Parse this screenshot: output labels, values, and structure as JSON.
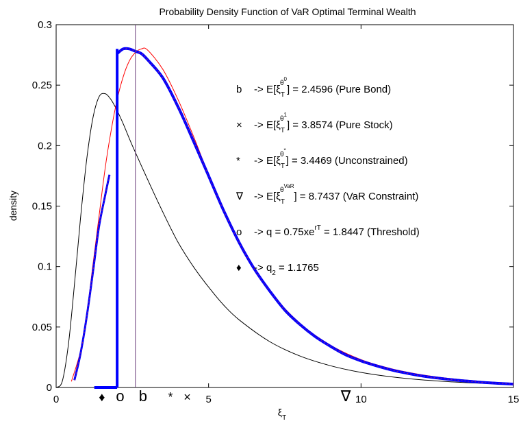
{
  "chart_data": {
    "type": "line",
    "title": "Probability Density Function of VaR Optimal Terminal Wealth",
    "xlabel_main": "ξ",
    "xlabel_sub": "T",
    "ylabel": "density",
    "xlim": [
      0,
      15
    ],
    "ylim": [
      0,
      0.3
    ],
    "xticks": [
      0,
      5,
      10,
      15
    ],
    "yticks": [
      0,
      0.05,
      0.1,
      0.15,
      0.2,
      0.25,
      0.3
    ],
    "xtick_labels": [
      "0",
      "5",
      "10",
      "15"
    ],
    "ytick_labels": [
      "0",
      "0.05",
      "0.1",
      "0.15",
      "0.2",
      "0.25",
      "0.3"
    ],
    "series": [
      {
        "key": "bond",
        "color": "#000000",
        "width": 1,
        "mode": 2.6,
        "x": [
          0,
          0.2,
          0.4,
          0.6,
          0.8,
          1.0,
          1.2,
          1.4,
          1.6,
          1.8,
          2.0,
          2.2,
          2.5,
          3.0,
          3.5,
          4.0,
          4.5,
          5.0,
          5.5,
          6.0,
          7.0,
          8.0,
          9.0,
          10.0,
          11.0,
          12.0,
          13.0,
          14.0,
          15.0
        ],
        "y": [
          0,
          0.005,
          0.035,
          0.085,
          0.14,
          0.188,
          0.222,
          0.24,
          0.243,
          0.238,
          0.229,
          0.218,
          0.2,
          0.172,
          0.145,
          0.12,
          0.1,
          0.083,
          0.068,
          0.056,
          0.038,
          0.026,
          0.018,
          0.0125,
          0.0088,
          0.0063,
          0.0046,
          0.0034,
          0.0025
        ]
      },
      {
        "key": "unconstrained",
        "color": "#ff0000",
        "width": 1,
        "x": [
          0.5,
          0.8,
          1.0,
          1.2,
          1.4,
          1.6,
          1.8,
          2.0,
          2.2,
          2.4,
          2.6,
          2.8,
          3.0,
          3.5,
          4.0,
          4.5,
          5.0,
          5.5,
          6.0,
          7.0,
          8.0,
          9.0,
          10.0,
          11.0,
          12.0,
          13.0,
          14.0,
          15.0
        ],
        "y": [
          0.005,
          0.03,
          0.06,
          0.1,
          0.14,
          0.18,
          0.212,
          0.238,
          0.257,
          0.27,
          0.277,
          0.28,
          0.279,
          0.263,
          0.238,
          0.208,
          0.176,
          0.146,
          0.119,
          0.08,
          0.053,
          0.035,
          0.023,
          0.0155,
          0.0105,
          0.0072,
          0.005,
          0.0035
        ]
      },
      {
        "key": "var-left",
        "color": "#0000ff",
        "width": 3,
        "x": [
          0.6,
          0.8,
          1.0,
          1.2,
          1.4,
          1.6,
          1.7,
          1.75
        ],
        "y": [
          0.006,
          0.028,
          0.058,
          0.094,
          0.132,
          0.158,
          0.17,
          0.176
        ]
      },
      {
        "key": "var-right",
        "color": "#0000ff",
        "width": 4,
        "x": [
          2.0,
          2.2,
          2.4,
          2.6,
          2.8,
          3.0,
          3.5,
          4.0,
          4.5,
          5.0,
          5.5,
          6.0,
          6.5,
          7.0,
          7.5,
          8.0,
          8.5,
          9.0,
          9.5,
          10.0,
          10.5,
          11.0,
          11.5,
          12.0,
          12.5,
          13.0,
          13.5,
          14.0,
          14.5,
          15.0
        ],
        "y": [
          0.276,
          0.28,
          0.28,
          0.278,
          0.276,
          0.271,
          0.256,
          0.232,
          0.204,
          0.175,
          0.146,
          0.12,
          0.098,
          0.08,
          0.064,
          0.052,
          0.042,
          0.034,
          0.027,
          0.022,
          0.018,
          0.0145,
          0.0118,
          0.0095,
          0.0078,
          0.0064,
          0.0052,
          0.0042,
          0.0034,
          0.0028
        ]
      },
      {
        "key": "var-vertical",
        "color": "#0000ff",
        "width": 4,
        "x": [
          2.0,
          2.0
        ],
        "y": [
          0,
          0.28
        ]
      },
      {
        "key": "var-base",
        "color": "#0000ff",
        "width": 4,
        "x": [
          1.25,
          2.0
        ],
        "y": [
          0,
          0
        ]
      },
      {
        "key": "threshold-line",
        "color": "#6a3d7a",
        "width": 1,
        "x": [
          2.6,
          2.6
        ],
        "y": [
          0,
          0.3
        ]
      }
    ],
    "markers": [
      {
        "symbol": "♦",
        "x": 1.5
      },
      {
        "symbol": "o",
        "x": 2.1
      },
      {
        "symbol": "b",
        "x": 2.85
      },
      {
        "symbol": "*",
        "x": 3.75
      },
      {
        "symbol": "×",
        "x": 4.3
      },
      {
        "symbol": "∇",
        "x": 9.5
      }
    ],
    "annotations": [
      {
        "symbol": "b",
        "arrow": "->",
        "exp_base": "E[ξ",
        "sub": "T",
        "sup": "θ",
        "supsup": "0",
        "rest": "] = 2.4596 (Pure Bond)"
      },
      {
        "symbol": "×",
        "arrow": "->",
        "exp_base": "E[ξ",
        "sub": "T",
        "sup": "θ",
        "supsup": "1",
        "rest": "] = 3.8574 (Pure Stock)"
      },
      {
        "symbol": "*",
        "arrow": "->",
        "exp_base": "E[ξ",
        "sub": "T",
        "sup": "θ",
        "supsup": "*",
        "rest": "] = 3.4469 (Unconstrained)"
      },
      {
        "symbol": "∇",
        "arrow": "->",
        "exp_base": "E[ξ",
        "sub": "T",
        "sup": "θ",
        "supsup": "VaR",
        "rest": "] = 8.7437 (VaR Constraint)"
      },
      {
        "symbol": "o",
        "arrow": "->",
        "plain": "q = 0.75xe",
        "plain_sup": "rT",
        "plain_rest": " = 1.8447 (Threshold)"
      },
      {
        "symbol": "♦",
        "arrow": "->",
        "plain": "q",
        "plain_sub": "2",
        "plain_rest": " = 1.1765"
      }
    ]
  }
}
